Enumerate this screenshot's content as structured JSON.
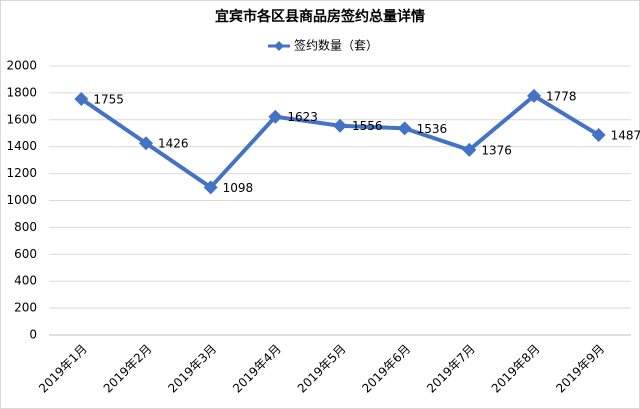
{
  "chart_data": {
    "type": "line",
    "title": "宜宾市各区县商品房签约总量详情",
    "categories": [
      "2019年1月",
      "2019年2月",
      "2019年3月",
      "2019年4月",
      "2019年5月",
      "2019年6月",
      "2019年7月",
      "2019年8月",
      "2019年9月"
    ],
    "series": [
      {
        "name": "签约数量（套）",
        "color": "#4472c4",
        "values": [
          1755,
          1426,
          1098,
          1623,
          1556,
          1536,
          1376,
          1778,
          1487
        ]
      }
    ],
    "ylim": [
      0,
      2000
    ],
    "yticks": [
      0,
      200,
      400,
      600,
      800,
      1000,
      1200,
      1400,
      1600,
      1800,
      2000
    ],
    "grid": true
  }
}
